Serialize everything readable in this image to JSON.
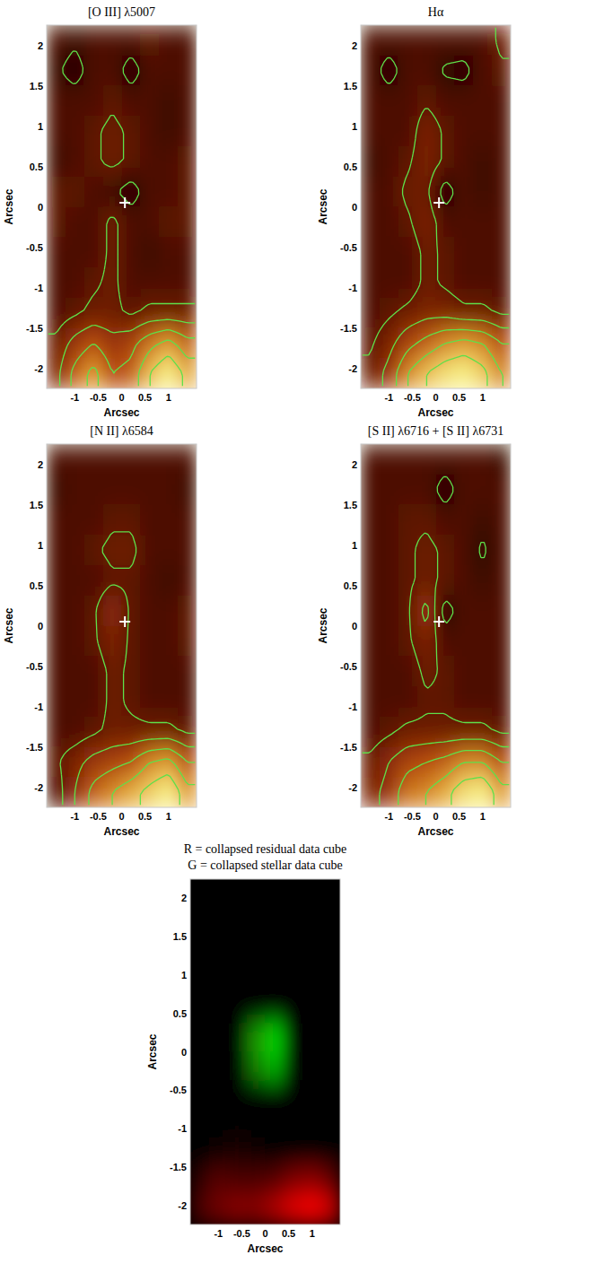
{
  "chart_data": [
    {
      "type": "heatmap",
      "title": "[O III] λ5007",
      "xlabel": "Arcsec",
      "ylabel": "Arcsec",
      "xlim": [
        -1.6,
        1.6
      ],
      "ylim": [
        -2.25,
        2.25
      ],
      "xticks": [
        -1,
        -0.5,
        0,
        0.5,
        1
      ],
      "yticks": [
        -2,
        -1.5,
        -1,
        -0.5,
        0,
        0.5,
        1,
        1.5,
        2
      ],
      "zlim": [
        0,
        1
      ],
      "contour_levels": [
        0.12,
        0.27,
        0.4,
        0.55,
        0.7,
        0.85
      ],
      "marker": "cross",
      "cross": {
        "x": 0.07,
        "y": 0.05
      },
      "cells": [
        [
          0.2,
          0.15,
          0.2,
          0.2,
          0.2,
          0.25,
          0.2,
          0.2
        ],
        [
          0.15,
          0.05,
          0.2,
          0.2,
          0.05,
          0.2,
          0.2,
          0.2
        ],
        [
          0.2,
          0.2,
          0.2,
          0.25,
          0.2,
          0.2,
          0.15,
          0.2
        ],
        [
          0.2,
          0.2,
          0.25,
          0.3,
          0.25,
          0.2,
          0.15,
          0.2
        ],
        [
          0.15,
          0.2,
          0.25,
          0.3,
          0.25,
          0.2,
          0.2,
          0.25
        ],
        [
          0.25,
          0.25,
          0.2,
          0.15,
          0.05,
          0.2,
          0.2,
          0.25
        ],
        [
          0.25,
          0.2,
          0.2,
          0.3,
          0.2,
          0.2,
          0.25,
          0.25
        ],
        [
          0.2,
          0.2,
          0.2,
          0.3,
          0.2,
          0.15,
          0.2,
          0.2
        ],
        [
          0.2,
          0.2,
          0.25,
          0.3,
          0.2,
          0.2,
          0.2,
          0.2
        ],
        [
          0.2,
          0.25,
          0.3,
          0.3,
          0.25,
          0.3,
          0.3,
          0.3
        ],
        [
          0.3,
          0.45,
          0.55,
          0.45,
          0.5,
          0.65,
          0.75,
          0.6
        ],
        [
          0.35,
          0.6,
          0.75,
          0.55,
          0.6,
          0.85,
          1.0,
          0.8
        ]
      ]
    },
    {
      "type": "heatmap",
      "title": "Hα",
      "xlabel": "Arcsec",
      "ylabel": "Arcsec",
      "xlim": [
        -1.6,
        1.6
      ],
      "ylim": [
        -2.25,
        2.25
      ],
      "xticks": [
        -1,
        -0.5,
        0,
        0.5,
        1
      ],
      "yticks": [
        -2,
        -1.5,
        -1,
        -0.5,
        0,
        0.5,
        1,
        1.5,
        2
      ],
      "zlim": [
        0,
        1
      ],
      "contour_levels": [
        0.12,
        0.27,
        0.4,
        0.55,
        0.7,
        0.85
      ],
      "marker": "cross",
      "cross": {
        "x": 0.07,
        "y": 0.05
      },
      "cells": [
        [
          0.2,
          0.2,
          0.2,
          0.2,
          0.2,
          0.2,
          0.2,
          0.3
        ],
        [
          0.2,
          0.05,
          0.2,
          0.2,
          0.1,
          0.08,
          0.2,
          0.25
        ],
        [
          0.2,
          0.2,
          0.2,
          0.25,
          0.2,
          0.2,
          0.2,
          0.2
        ],
        [
          0.2,
          0.2,
          0.2,
          0.35,
          0.25,
          0.2,
          0.2,
          0.2
        ],
        [
          0.15,
          0.2,
          0.25,
          0.35,
          0.25,
          0.2,
          0.15,
          0.2
        ],
        [
          0.2,
          0.2,
          0.3,
          0.3,
          0.05,
          0.2,
          0.15,
          0.2
        ],
        [
          0.2,
          0.2,
          0.25,
          0.35,
          0.2,
          0.2,
          0.2,
          0.2
        ],
        [
          0.2,
          0.2,
          0.2,
          0.3,
          0.25,
          0.2,
          0.2,
          0.2
        ],
        [
          0.2,
          0.2,
          0.2,
          0.3,
          0.25,
          0.2,
          0.2,
          0.2
        ],
        [
          0.2,
          0.25,
          0.3,
          0.35,
          0.35,
          0.3,
          0.3,
          0.25
        ],
        [
          0.25,
          0.35,
          0.5,
          0.6,
          0.7,
          0.75,
          0.7,
          0.55
        ],
        [
          0.3,
          0.45,
          0.7,
          0.85,
          0.95,
          1.0,
          0.9,
          0.7
        ]
      ]
    },
    {
      "type": "heatmap",
      "title": "[N II] λ6584",
      "xlabel": "Arcsec",
      "ylabel": "Arcsec",
      "xlim": [
        -1.6,
        1.6
      ],
      "ylim": [
        -2.25,
        2.25
      ],
      "xticks": [
        -1,
        -0.5,
        0,
        0.5,
        1
      ],
      "yticks": [
        -2,
        -1.5,
        -1,
        -0.5,
        0,
        0.5,
        1,
        1.5,
        2
      ],
      "zlim": [
        0,
        1
      ],
      "contour_levels": [
        0.12,
        0.27,
        0.4,
        0.55,
        0.7,
        0.85
      ],
      "marker": "cross",
      "cross": {
        "x": 0.07,
        "y": 0.05
      },
      "cells": [
        [
          0.2,
          0.2,
          0.2,
          0.2,
          0.2,
          0.2,
          0.2,
          0.2
        ],
        [
          0.15,
          0.2,
          0.2,
          0.2,
          0.2,
          0.2,
          0.2,
          0.15
        ],
        [
          0.2,
          0.2,
          0.2,
          0.25,
          0.25,
          0.2,
          0.2,
          0.2
        ],
        [
          0.2,
          0.2,
          0.25,
          0.3,
          0.3,
          0.2,
          0.2,
          0.2
        ],
        [
          0.2,
          0.2,
          0.2,
          0.25,
          0.25,
          0.2,
          0.15,
          0.2
        ],
        [
          0.2,
          0.2,
          0.25,
          0.4,
          0.25,
          0.2,
          0.2,
          0.25
        ],
        [
          0.2,
          0.2,
          0.25,
          0.35,
          0.25,
          0.2,
          0.2,
          0.25
        ],
        [
          0.2,
          0.2,
          0.2,
          0.3,
          0.25,
          0.2,
          0.2,
          0.2
        ],
        [
          0.2,
          0.2,
          0.2,
          0.3,
          0.25,
          0.2,
          0.2,
          0.2
        ],
        [
          0.2,
          0.2,
          0.25,
          0.3,
          0.3,
          0.3,
          0.3,
          0.25
        ],
        [
          0.25,
          0.35,
          0.45,
          0.5,
          0.55,
          0.7,
          0.75,
          0.55
        ],
        [
          0.2,
          0.4,
          0.6,
          0.7,
          0.8,
          0.9,
          1.0,
          0.75
        ]
      ]
    },
    {
      "type": "heatmap",
      "title": "[S II] λ6716 + [S II] λ6731",
      "xlabel": "Arcsec",
      "ylabel": "Arcsec",
      "xlim": [
        -1.6,
        1.6
      ],
      "ylim": [
        -2.25,
        2.25
      ],
      "xticks": [
        -1,
        -0.5,
        0,
        0.5,
        1
      ],
      "yticks": [
        -2,
        -1.5,
        -1,
        -0.5,
        0,
        0.5,
        1,
        1.5,
        2
      ],
      "zlim": [
        0,
        1
      ],
      "contour_levels": [
        0.12,
        0.27,
        0.4,
        0.55,
        0.7,
        0.85
      ],
      "marker": "cross",
      "cross": {
        "x": 0.07,
        "y": 0.05
      },
      "cells": [
        [
          0.2,
          0.2,
          0.2,
          0.2,
          0.2,
          0.2,
          0.2,
          0.15
        ],
        [
          0.2,
          0.2,
          0.2,
          0.2,
          0.05,
          0.2,
          0.2,
          0.2
        ],
        [
          0.2,
          0.2,
          0.25,
          0.25,
          0.2,
          0.2,
          0.15,
          0.2
        ],
        [
          0.2,
          0.2,
          0.25,
          0.3,
          0.25,
          0.2,
          0.1,
          0.2
        ],
        [
          0.2,
          0.2,
          0.25,
          0.3,
          0.25,
          0.2,
          0.15,
          0.2
        ],
        [
          0.2,
          0.2,
          0.25,
          0.45,
          0.05,
          0.2,
          0.2,
          0.2
        ],
        [
          0.2,
          0.2,
          0.25,
          0.35,
          0.2,
          0.2,
          0.2,
          0.2
        ],
        [
          0.2,
          0.2,
          0.2,
          0.3,
          0.25,
          0.2,
          0.2,
          0.2
        ],
        [
          0.2,
          0.2,
          0.2,
          0.25,
          0.25,
          0.2,
          0.2,
          0.2
        ],
        [
          0.2,
          0.25,
          0.3,
          0.3,
          0.3,
          0.3,
          0.3,
          0.25
        ],
        [
          0.3,
          0.4,
          0.5,
          0.55,
          0.6,
          0.7,
          0.7,
          0.55
        ],
        [
          0.35,
          0.45,
          0.65,
          0.7,
          0.8,
          0.95,
          1.0,
          0.75
        ]
      ]
    },
    {
      "type": "rgb_composite",
      "xlabel": "Arcsec",
      "ylabel": "Arcsec",
      "xlim": [
        -1.6,
        1.6
      ],
      "ylim": [
        -2.25,
        2.25
      ],
      "xticks": [
        -1,
        -0.5,
        0,
        0.5,
        1
      ],
      "yticks": [
        -2,
        -1.5,
        -1,
        -0.5,
        0,
        0.5,
        1,
        1.5,
        2
      ],
      "zlim": [
        0,
        1
      ],
      "channels": [
        {
          "name": "R = collapsed residual data cube",
          "color": "#ff0000",
          "cells": [
            [
              0,
              0,
              0,
              0,
              0,
              0,
              0,
              0
            ],
            [
              0,
              0,
              0,
              0,
              0,
              0,
              0,
              0
            ],
            [
              0,
              0,
              0,
              0,
              0,
              0,
              0,
              0
            ],
            [
              0,
              0,
              0,
              0,
              0,
              0,
              0,
              0
            ],
            [
              0,
              0,
              0,
              0,
              0,
              0,
              0,
              0
            ],
            [
              0,
              0,
              0,
              0.12,
              0,
              0,
              0,
              0
            ],
            [
              0,
              0,
              0,
              0.08,
              0,
              0,
              0,
              0
            ],
            [
              0,
              0,
              0,
              0,
              0,
              0,
              0,
              0
            ],
            [
              0,
              0,
              0,
              0,
              0,
              0,
              0,
              0
            ],
            [
              0,
              0.05,
              0.12,
              0.05,
              0,
              0,
              0,
              0
            ],
            [
              0.2,
              0.35,
              0.3,
              0.3,
              0.35,
              0.5,
              0.55,
              0.4
            ],
            [
              0.3,
              0.45,
              0.55,
              0.55,
              0.7,
              0.9,
              1.0,
              0.8
            ]
          ]
        },
        {
          "name": "G = collapsed stellar data cube",
          "color": "#00ff00",
          "cells": [
            [
              0,
              0,
              0,
              0,
              0,
              0,
              0,
              0
            ],
            [
              0,
              0,
              0,
              0,
              0,
              0,
              0,
              0
            ],
            [
              0,
              0,
              0,
              0,
              0,
              0,
              0,
              0
            ],
            [
              0,
              0,
              0,
              0,
              0,
              0,
              0,
              0
            ],
            [
              0,
              0,
              0,
              0,
              0,
              0,
              0,
              0
            ],
            [
              0,
              0,
              0,
              0.6,
              0.85,
              0,
              0,
              0
            ],
            [
              0,
              0,
              0,
              0.5,
              0.7,
              0,
              0,
              0
            ],
            [
              0,
              0,
              0,
              0,
              0,
              0,
              0,
              0
            ],
            [
              0,
              0,
              0,
              0,
              0,
              0,
              0,
              0
            ],
            [
              0,
              0,
              0,
              0,
              0,
              0,
              0,
              0
            ],
            [
              0,
              0,
              0,
              0,
              0,
              0,
              0,
              0
            ],
            [
              0,
              0,
              0,
              0,
              0,
              0,
              0,
              0
            ]
          ]
        }
      ]
    }
  ]
}
